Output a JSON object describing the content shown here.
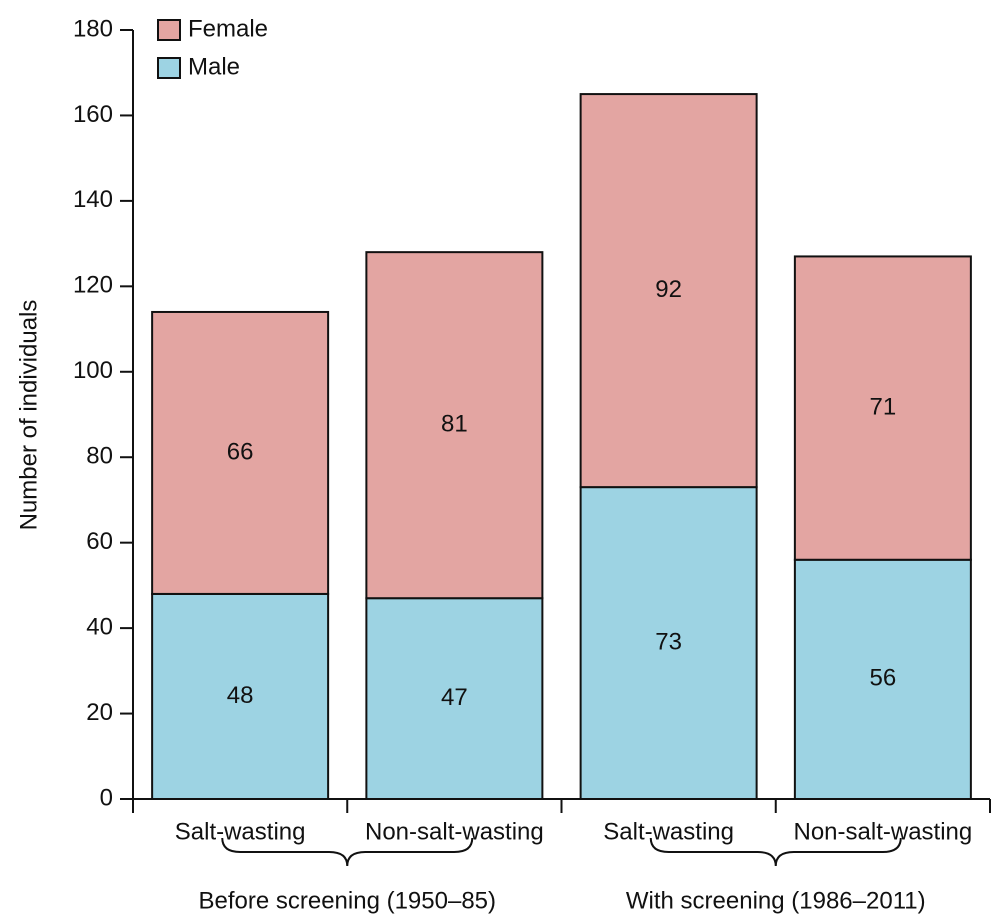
{
  "chart_data": {
    "type": "stacked_bar",
    "ylabel": "Number of individuals",
    "categories": [
      "Salt-wasting",
      "Non-salt-wasting",
      "Salt-wasting",
      "Non-salt-wasting"
    ],
    "group_labels": [
      "Before screening (1950–85)",
      "With screening (1986–2011)"
    ],
    "series": [
      {
        "name": "Male",
        "color": "#9dd3e3",
        "values": [
          48,
          47,
          73,
          56
        ]
      },
      {
        "name": "Female",
        "color": "#e3a5a2",
        "values": [
          66,
          81,
          92,
          71
        ]
      }
    ],
    "ylim": [
      0,
      180
    ],
    "yticks": [
      0,
      20,
      40,
      60,
      80,
      100,
      120,
      140,
      160,
      180
    ],
    "legend": "upper left"
  }
}
